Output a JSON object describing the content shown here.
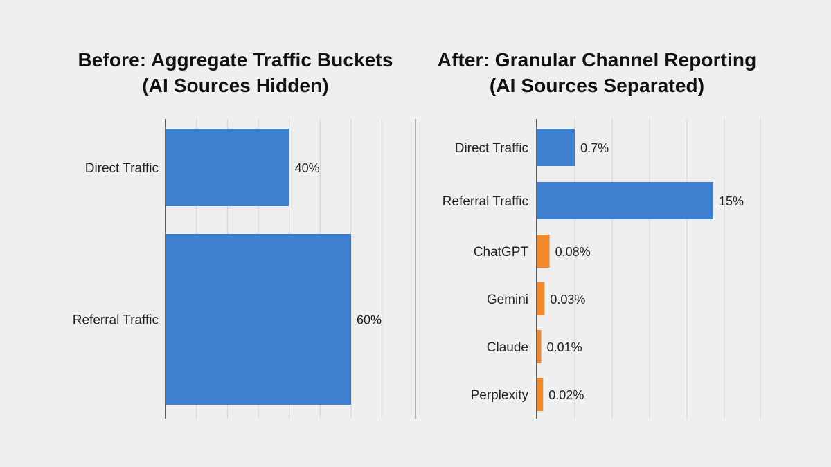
{
  "chart_data": [
    {
      "type": "bar",
      "orientation": "horizontal",
      "title": [
        "Before: Aggregate Traffic Buckets",
        "(AI Sources Hidden)"
      ],
      "categories": [
        "Direct Traffic",
        "Referral Traffic"
      ],
      "values": [
        40,
        60
      ],
      "data_labels": [
        "40%",
        "60%"
      ],
      "colors": [
        "#3f7fcf",
        "#3f7fcf"
      ],
      "xlim": [
        0,
        120
      ],
      "grid": true,
      "xlabel": "",
      "ylabel": ""
    },
    {
      "type": "bar",
      "orientation": "horizontal",
      "title": [
        "After: Granular Channel Reporting",
        "(AI Sources Separated)"
      ],
      "categories": [
        "Direct Traffic",
        "Referral Traffic",
        "ChatGPT",
        "Gemini",
        "Claude",
        "Perplexity"
      ],
      "values": [
        0.7,
        15,
        0.08,
        0.03,
        0.01,
        0.02
      ],
      "data_labels": [
        "0.7%",
        "15%",
        "0.08%",
        "0.03%",
        "0.01%",
        "0.02%"
      ],
      "colors": [
        "#3f7fcf",
        "#3f7fcf",
        "#f08a2c",
        "#f08a2c",
        "#f08a2c",
        "#f08a2c"
      ],
      "grid": true,
      "xlabel": "",
      "ylabel": ""
    }
  ]
}
